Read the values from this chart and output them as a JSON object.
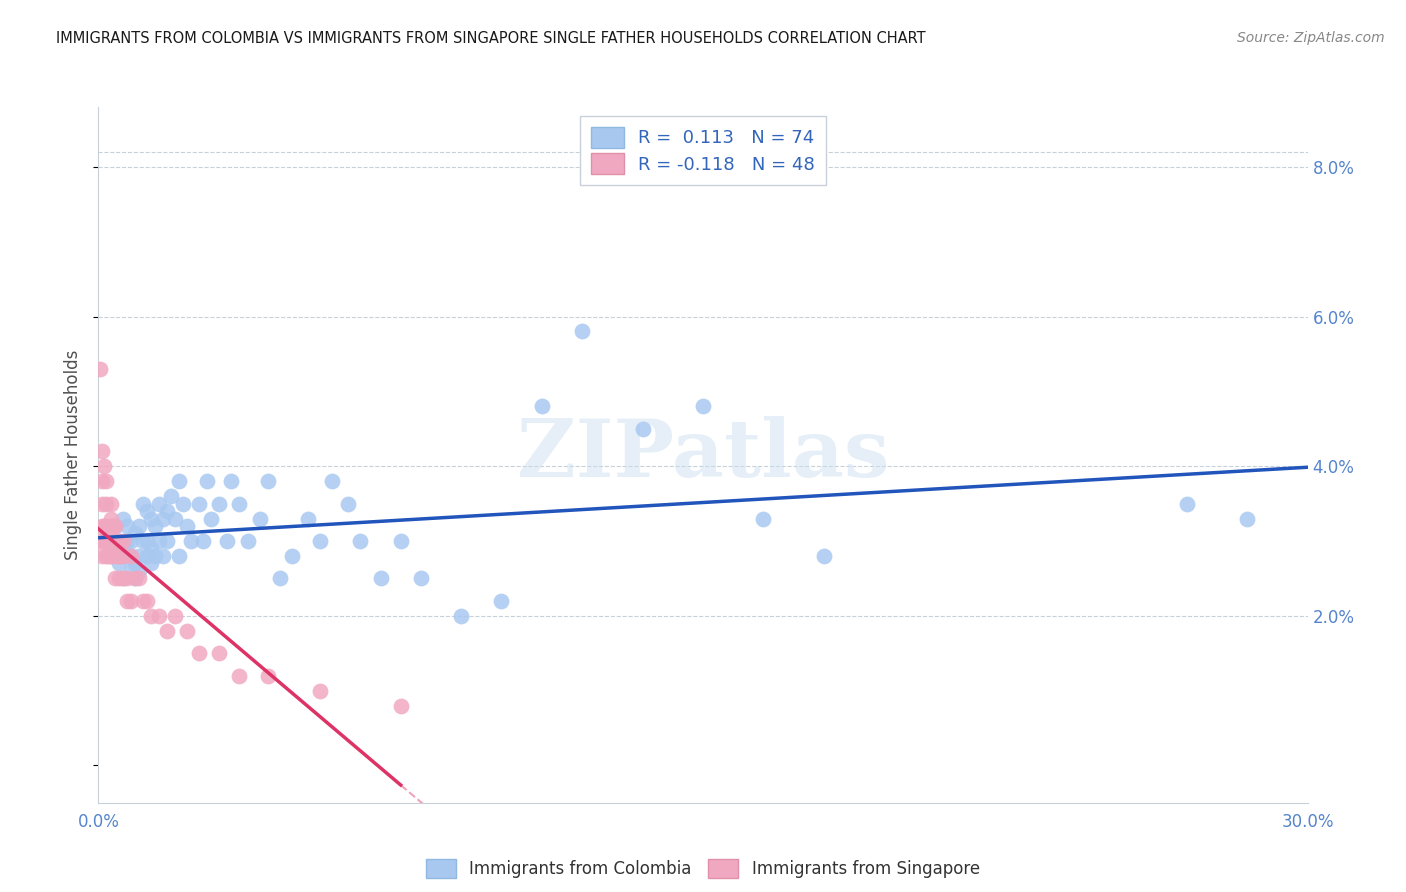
{
  "title": "IMMIGRANTS FROM COLOMBIA VS IMMIGRANTS FROM SINGAPORE SINGLE FATHER HOUSEHOLDS CORRELATION CHART",
  "source": "Source: ZipAtlas.com",
  "ylabel": "Single Father Households",
  "legend_label_colombia": "Immigrants from Colombia",
  "legend_label_singapore": "Immigrants from Singapore",
  "R_colombia": 0.113,
  "N_colombia": 74,
  "R_singapore": -0.118,
  "N_singapore": 48,
  "xlim": [
    0.0,
    0.3
  ],
  "ylim": [
    -0.005,
    0.088
  ],
  "xtick_positions": [
    0.0,
    0.05,
    0.1,
    0.15,
    0.2,
    0.25,
    0.3
  ],
  "ytick_right_positions": [
    0.02,
    0.04,
    0.06,
    0.08
  ],
  "color_colombia": "#a8c8f0",
  "color_singapore": "#f0a8c0",
  "line_color_colombia": "#2255bb",
  "line_color_singapore": "#dd3366",
  "colombia_x": [
    0.003,
    0.004,
    0.004,
    0.005,
    0.005,
    0.006,
    0.006,
    0.006,
    0.007,
    0.007,
    0.007,
    0.008,
    0.008,
    0.008,
    0.009,
    0.009,
    0.009,
    0.01,
    0.01,
    0.01,
    0.011,
    0.011,
    0.012,
    0.012,
    0.012,
    0.013,
    0.013,
    0.013,
    0.014,
    0.014,
    0.015,
    0.015,
    0.016,
    0.016,
    0.017,
    0.017,
    0.018,
    0.019,
    0.02,
    0.02,
    0.021,
    0.022,
    0.023,
    0.025,
    0.026,
    0.027,
    0.028,
    0.03,
    0.032,
    0.033,
    0.035,
    0.037,
    0.04,
    0.042,
    0.045,
    0.048,
    0.052,
    0.055,
    0.058,
    0.062,
    0.065,
    0.07,
    0.075,
    0.08,
    0.09,
    0.1,
    0.11,
    0.12,
    0.135,
    0.15,
    0.165,
    0.18,
    0.27,
    0.285
  ],
  "colombia_y": [
    0.028,
    0.03,
    0.032,
    0.027,
    0.03,
    0.025,
    0.028,
    0.033,
    0.028,
    0.03,
    0.032,
    0.026,
    0.028,
    0.03,
    0.025,
    0.027,
    0.031,
    0.026,
    0.028,
    0.032,
    0.03,
    0.035,
    0.028,
    0.03,
    0.034,
    0.027,
    0.029,
    0.033,
    0.028,
    0.032,
    0.03,
    0.035,
    0.028,
    0.033,
    0.03,
    0.034,
    0.036,
    0.033,
    0.038,
    0.028,
    0.035,
    0.032,
    0.03,
    0.035,
    0.03,
    0.038,
    0.033,
    0.035,
    0.03,
    0.038,
    0.035,
    0.03,
    0.033,
    0.038,
    0.025,
    0.028,
    0.033,
    0.03,
    0.038,
    0.035,
    0.03,
    0.025,
    0.03,
    0.025,
    0.02,
    0.022,
    0.048,
    0.058,
    0.045,
    0.048,
    0.033,
    0.028,
    0.035,
    0.033
  ],
  "singapore_x": [
    0.0005,
    0.0008,
    0.001,
    0.001,
    0.001,
    0.0015,
    0.0015,
    0.002,
    0.002,
    0.002,
    0.002,
    0.0025,
    0.0025,
    0.003,
    0.003,
    0.003,
    0.003,
    0.0035,
    0.0035,
    0.004,
    0.004,
    0.004,
    0.004,
    0.005,
    0.005,
    0.005,
    0.006,
    0.006,
    0.006,
    0.007,
    0.007,
    0.008,
    0.008,
    0.009,
    0.01,
    0.011,
    0.012,
    0.013,
    0.015,
    0.017,
    0.019,
    0.022,
    0.025,
    0.03,
    0.035,
    0.042,
    0.055,
    0.075
  ],
  "singapore_y": [
    0.03,
    0.028,
    0.038,
    0.032,
    0.035,
    0.03,
    0.032,
    0.028,
    0.03,
    0.032,
    0.035,
    0.028,
    0.03,
    0.033,
    0.028,
    0.03,
    0.032,
    0.03,
    0.032,
    0.03,
    0.028,
    0.032,
    0.025,
    0.03,
    0.028,
    0.025,
    0.03,
    0.025,
    0.028,
    0.025,
    0.022,
    0.028,
    0.022,
    0.025,
    0.025,
    0.022,
    0.022,
    0.02,
    0.02,
    0.018,
    0.02,
    0.018,
    0.015,
    0.015,
    0.012,
    0.012,
    0.01,
    0.008
  ],
  "singapore_extra_x": [
    0.0005,
    0.001,
    0.0015,
    0.002,
    0.003,
    0.004,
    0.005
  ],
  "singapore_extra_y": [
    0.053,
    0.042,
    0.04,
    0.038,
    0.035,
    0.03,
    0.028
  ]
}
